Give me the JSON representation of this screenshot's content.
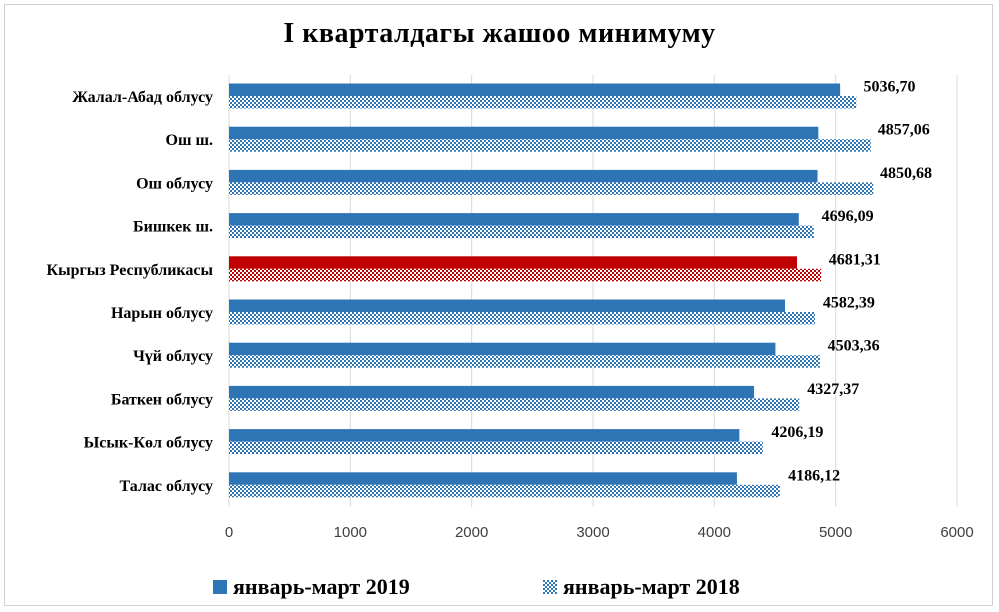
{
  "colors": {
    "series2019": "#2e75b6",
    "series2018": "#2e75b6",
    "highlight": "#c00000",
    "grid": "#d9d9d9",
    "tick": "#404040"
  },
  "chart_data": {
    "type": "bar",
    "orientation": "horizontal",
    "title": "I кварталдагы жашоо минимуму",
    "categories": [
      "Жалал-Абад облусу",
      "Ош ш.",
      "Ош облусу",
      "Бишкек ш.",
      "Кыргыз Республикасы",
      "Нарын облусу",
      "Чүй облусу",
      "Баткен облусу",
      "Ысык-Көл облусу",
      "Талас облусу"
    ],
    "highlight_category": "Кыргыз Республикасы",
    "series": [
      {
        "name": "январь-март 2019",
        "pattern": "solid",
        "values": [
          5036.7,
          4857.06,
          4850.68,
          4696.09,
          4681.31,
          4582.39,
          4503.36,
          4327.37,
          4206.19,
          4186.12
        ],
        "labels": [
          "5036,70",
          "4857,06",
          "4850,68",
          "4696,09",
          "4681,31",
          "4582,39",
          "4503,36",
          "4327,37",
          "4206,19",
          "4186,12"
        ]
      },
      {
        "name": "январь-март 2018",
        "pattern": "checker",
        "values": [
          5170,
          5290,
          5310,
          4820,
          4880,
          4830,
          4870,
          4700,
          4400,
          4540
        ]
      }
    ],
    "xlim": [
      0,
      6000
    ],
    "xticks": [
      "0",
      "1000",
      "2000",
      "3000",
      "4000",
      "5000",
      "6000"
    ],
    "grid": true,
    "legend_position": "bottom"
  }
}
